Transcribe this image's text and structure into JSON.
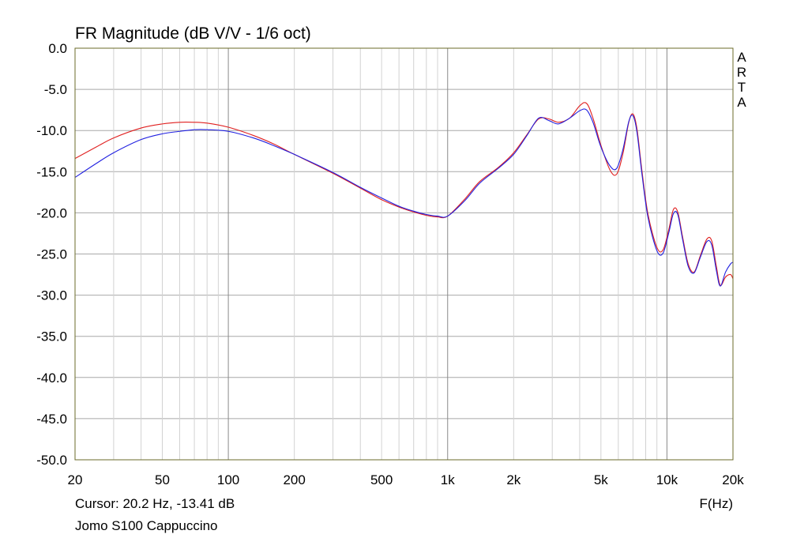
{
  "chart_data": {
    "type": "line",
    "title": "FR Magnitude (dB V/V - 1/6 oct)",
    "xlabel": "F(Hz)",
    "ylabel": "",
    "x_scale": "log",
    "xlim": [
      20,
      20000
    ],
    "ylim": [
      -50,
      0
    ],
    "grid": true,
    "x_ticks": [
      20,
      50,
      100,
      200,
      500,
      1000,
      2000,
      5000,
      10000,
      20000
    ],
    "x_tick_labels": [
      "20",
      "50",
      "100",
      "200",
      "500",
      "1k",
      "2k",
      "5k",
      "10k",
      "20k"
    ],
    "y_ticks": [
      0,
      -5,
      -10,
      -15,
      -20,
      -25,
      -30,
      -35,
      -40,
      -45,
      -50
    ],
    "y_tick_labels": [
      "0.0",
      "-5.0",
      "-10.0",
      "-15.0",
      "-20.0",
      "-25.0",
      "-30.0",
      "-35.0",
      "-40.0",
      "-45.0",
      "-50.0"
    ],
    "watermark": [
      "A",
      "R",
      "T",
      "A"
    ],
    "cursor_text": "Cursor: 20.2 Hz, -13.41 dB",
    "measurement_name": "Jomo S100 Cappuccino",
    "series": [
      {
        "color": "#e02020",
        "x": [
          20,
          25,
          30,
          40,
          50,
          60,
          70,
          80,
          100,
          130,
          160,
          200,
          300,
          400,
          500,
          600,
          700,
          800,
          900,
          1000,
          1200,
          1400,
          1700,
          2000,
          2300,
          2600,
          2900,
          3200,
          3600,
          4000,
          4300,
          4600,
          5000,
          5500,
          5900,
          6300,
          6700,
          7000,
          7300,
          7700,
          8200,
          9000,
          9600,
          10200,
          10700,
          11200,
          11800,
          12500,
          13300,
          14200,
          15200,
          16000,
          16800,
          17500,
          18500,
          19500,
          20000
        ],
        "y": [
          -13.4,
          -12.0,
          -10.9,
          -9.7,
          -9.2,
          -9.0,
          -9.0,
          -9.1,
          -9.6,
          -10.6,
          -11.6,
          -12.9,
          -15.2,
          -17.0,
          -18.4,
          -19.3,
          -19.9,
          -20.3,
          -20.5,
          -20.4,
          -18.3,
          -16.2,
          -14.5,
          -12.7,
          -10.5,
          -8.6,
          -8.6,
          -9.0,
          -8.5,
          -7.0,
          -6.7,
          -8.5,
          -11.8,
          -14.8,
          -15.3,
          -12.8,
          -9.0,
          -8.0,
          -9.8,
          -15.0,
          -20.2,
          -24.2,
          -24.5,
          -22.0,
          -19.6,
          -19.9,
          -23.0,
          -26.2,
          -27.2,
          -25.2,
          -23.2,
          -23.4,
          -26.5,
          -28.8,
          -27.8,
          -27.5,
          -28.0
        ]
      },
      {
        "color": "#2020e0",
        "x": [
          20,
          25,
          30,
          40,
          50,
          60,
          70,
          80,
          100,
          130,
          160,
          200,
          300,
          400,
          500,
          600,
          700,
          800,
          900,
          1000,
          1200,
          1400,
          1700,
          2000,
          2300,
          2600,
          2900,
          3200,
          3600,
          4000,
          4300,
          4600,
          5000,
          5500,
          5900,
          6300,
          6700,
          7000,
          7300,
          7700,
          8200,
          9000,
          9600,
          10200,
          10700,
          11200,
          11800,
          12500,
          13300,
          14200,
          15200,
          16000,
          16800,
          17500,
          18500,
          19500,
          20000
        ],
        "y": [
          -15.7,
          -14.0,
          -12.7,
          -11.1,
          -10.4,
          -10.1,
          -9.9,
          -9.9,
          -10.1,
          -10.9,
          -11.8,
          -12.9,
          -15.1,
          -16.9,
          -18.2,
          -19.2,
          -19.8,
          -20.2,
          -20.4,
          -20.4,
          -18.5,
          -16.4,
          -14.6,
          -12.9,
          -10.6,
          -8.5,
          -8.8,
          -9.2,
          -8.5,
          -7.6,
          -7.5,
          -9.0,
          -12.0,
          -14.3,
          -14.6,
          -12.3,
          -8.9,
          -8.2,
          -10.2,
          -15.4,
          -20.6,
          -24.6,
          -24.9,
          -22.4,
          -20.1,
          -20.2,
          -23.3,
          -26.5,
          -27.3,
          -25.4,
          -23.5,
          -23.9,
          -27.0,
          -28.9,
          -27.2,
          -26.2,
          -26.0
        ]
      }
    ]
  }
}
